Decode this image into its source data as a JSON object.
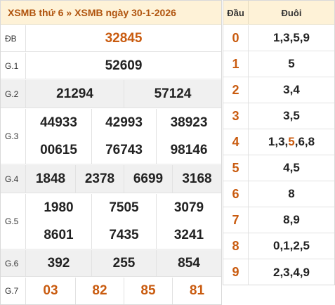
{
  "header": {
    "crumb_1": "XSMB thứ 6",
    "separator": "»",
    "crumb_2": "XSMB ngày 30-1-2026"
  },
  "prizes": {
    "db": {
      "label": "ĐB",
      "values": [
        "32845"
      ]
    },
    "g1": {
      "label": "G.1",
      "values": [
        "52609"
      ]
    },
    "g2": {
      "label": "G.2",
      "values": [
        "21294",
        "57124"
      ]
    },
    "g3": {
      "label": "G.3",
      "values": [
        "44933",
        "42993",
        "38923",
        "00615",
        "76743",
        "98146"
      ]
    },
    "g4": {
      "label": "G.4",
      "values": [
        "1848",
        "2378",
        "6699",
        "3168"
      ]
    },
    "g5": {
      "label": "G.5",
      "values": [
        "1980",
        "7505",
        "3079",
        "8601",
        "7435",
        "3241"
      ]
    },
    "g6": {
      "label": "G.6",
      "values": [
        "392",
        "255",
        "854"
      ]
    },
    "g7": {
      "label": "G.7",
      "values": [
        "03",
        "82",
        "85",
        "81"
      ]
    }
  },
  "loto": {
    "col_head": "Đầu",
    "col_tail": "Đuôi",
    "rows": [
      {
        "head": "0",
        "tail": "1,3,5,9"
      },
      {
        "head": "1",
        "tail": "5"
      },
      {
        "head": "2",
        "tail": "3,4"
      },
      {
        "head": "3",
        "tail": "3,5"
      },
      {
        "head": "4",
        "tail_a": "1,3,",
        "tail_hl": "5",
        "tail_b": ",6,8"
      },
      {
        "head": "5",
        "tail": "4,5"
      },
      {
        "head": "6",
        "tail": "8"
      },
      {
        "head": "7",
        "tail": "8,9"
      },
      {
        "head": "8",
        "tail": "0,1,2,5"
      },
      {
        "head": "9",
        "tail": "2,3,4,9"
      }
    ]
  },
  "colors": {
    "header_bg": "#fef2d7",
    "accent": "#c95b0f",
    "row_alt": "#f0f0f0"
  }
}
